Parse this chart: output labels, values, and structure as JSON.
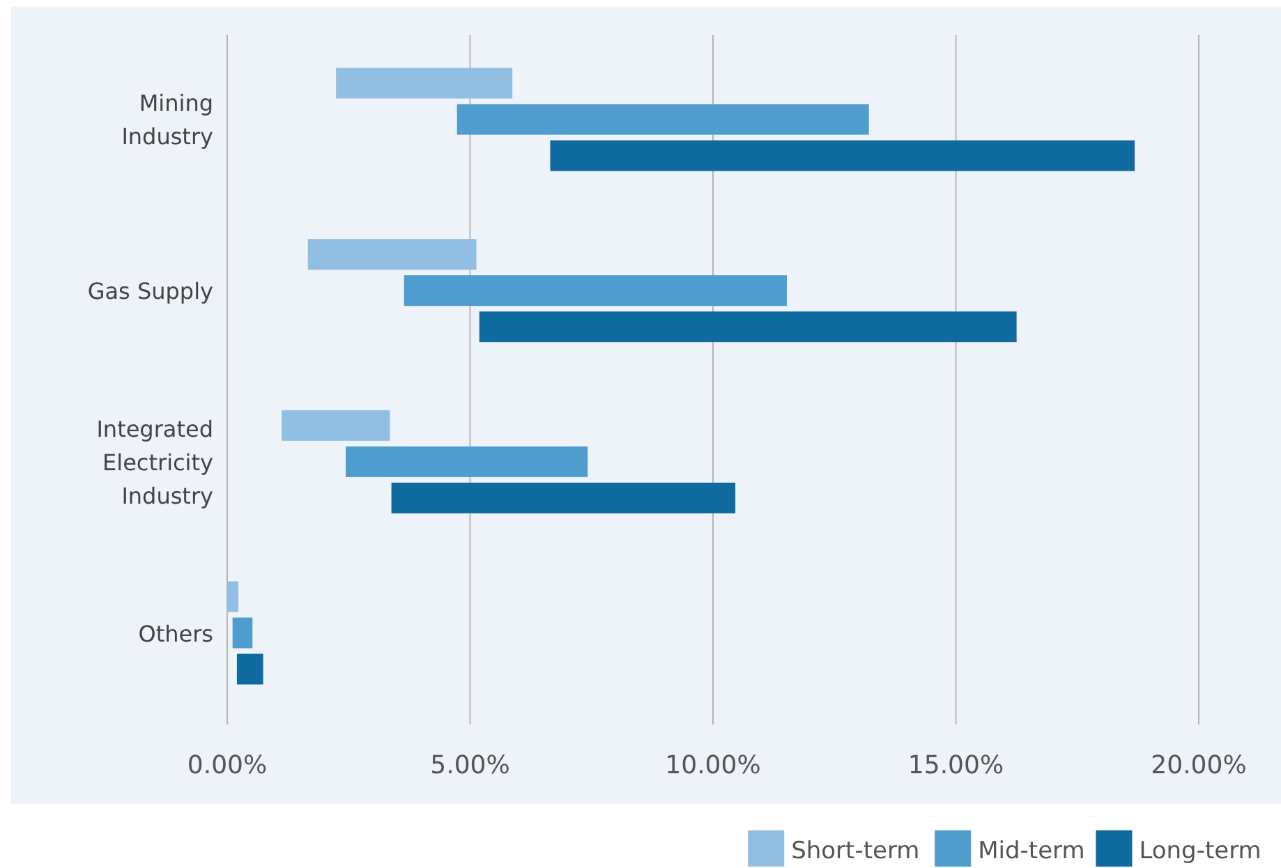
{
  "chart_data": {
    "type": "bar",
    "orientation": "horizontal",
    "categories": [
      "Mining Industry",
      "Gas Supply",
      "Integrated Electricity Industry",
      "Others"
    ],
    "series": [
      {
        "name": "Short-term",
        "color": "#91bfe4",
        "base": [
          2.24,
          1.66,
          1.12,
          0
        ],
        "values": [
          3.63,
          3.47,
          2.23,
          0.23
        ]
      },
      {
        "name": "Mid-term",
        "color": "#4f9ccf",
        "base": [
          4.73,
          3.64,
          2.44,
          0.11
        ],
        "values": [
          8.48,
          7.88,
          4.98,
          0.41
        ]
      },
      {
        "name": "Long-term",
        "color": "#0f6aa0",
        "base": [
          6.65,
          5.19,
          3.38,
          0.2
        ],
        "values": [
          12.03,
          11.06,
          7.08,
          0.54
        ]
      }
    ],
    "xlim": [
      0,
      20
    ],
    "xticks": [
      {
        "value": 0,
        "label": "0.00%"
      },
      {
        "value": 5,
        "label": "5.00%"
      },
      {
        "value": 10,
        "label": "10.00%"
      },
      {
        "value": 15,
        "label": "15.00%"
      },
      {
        "value": 20,
        "label": "20.00%"
      }
    ],
    "grid": "x",
    "legend": "bottom right"
  }
}
